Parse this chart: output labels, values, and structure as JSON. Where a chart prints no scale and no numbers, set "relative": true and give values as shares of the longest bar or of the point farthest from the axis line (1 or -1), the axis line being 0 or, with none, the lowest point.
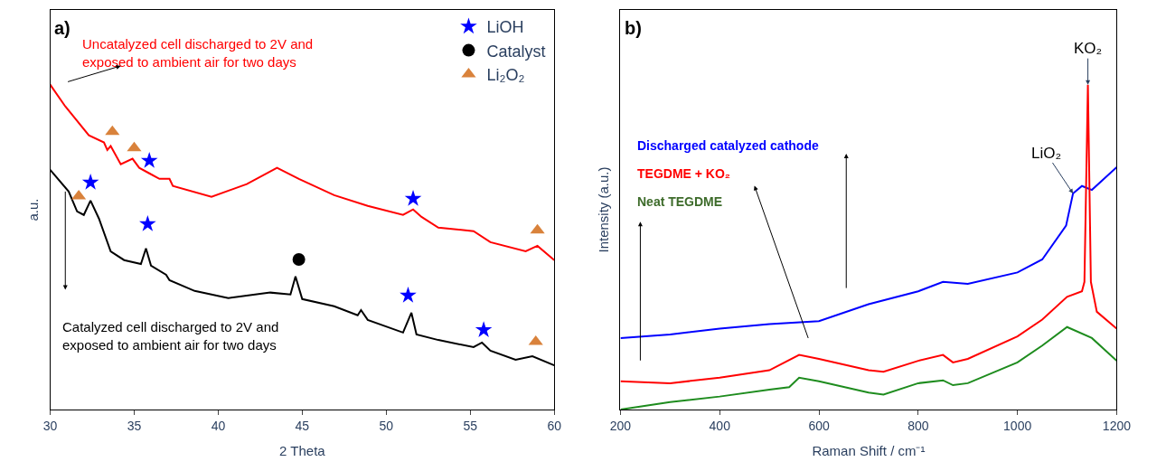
{
  "chart_data": [
    {
      "type": "line",
      "relative": true,
      "xlabel": "2 Theta",
      "ylabel": "a.u.",
      "xlim": [
        30,
        60
      ],
      "xticks": [
        30,
        35,
        40,
        45,
        50,
        55,
        60
      ],
      "tick_labels": "x",
      "legend": "top right",
      "annotations": [
        "a)"
      ],
      "series": [
        {
          "name": "Uncatalyzed cell discharged to 2V and\nexposed to ambient air for two days",
          "color": "#ff0000",
          "x": [
            30,
            30.9,
            32.3,
            33.2,
            33.4,
            33.6,
            34.2,
            34.9,
            35.3,
            35.9,
            36.5,
            37.1,
            37.3,
            39.6,
            41.7,
            43.5,
            44.8,
            46.9,
            48.9,
            51.0,
            51.6,
            52.1,
            53.1,
            55.2,
            56.2,
            58.3,
            59.0,
            60
          ],
          "values": [
            1.0,
            0.933,
            0.844,
            0.822,
            0.799,
            0.811,
            0.755,
            0.772,
            0.744,
            0.727,
            0.71,
            0.71,
            0.688,
            0.655,
            0.694,
            0.744,
            0.71,
            0.66,
            0.627,
            0.599,
            0.616,
            0.593,
            0.56,
            0.549,
            0.515,
            0.487,
            0.504,
            0.46
          ]
        },
        {
          "name": "Catalyzed cell discharged to 2V and\nexposed to ambient air for two days",
          "color": "#000000",
          "x": [
            30,
            31.1,
            31.6,
            32.0,
            32.4,
            32.9,
            33.6,
            34.4,
            35.4,
            35.7,
            36.0,
            36.9,
            37.1,
            38.6,
            40.6,
            43.1,
            44.3,
            44.6,
            45.0,
            46.9,
            48.3,
            48.5,
            48.9,
            51.0,
            51.5,
            51.8,
            53.1,
            55.2,
            55.7,
            56.2,
            57.7,
            58.7,
            60
          ],
          "values": [
            0.738,
            0.671,
            0.61,
            0.599,
            0.643,
            0.588,
            0.487,
            0.46,
            0.448,
            0.496,
            0.443,
            0.415,
            0.398,
            0.365,
            0.343,
            0.36,
            0.354,
            0.41,
            0.34,
            0.318,
            0.29,
            0.306,
            0.276,
            0.237,
            0.298,
            0.231,
            0.214,
            0.192,
            0.206,
            0.181,
            0.153,
            0.164,
            0.136
          ]
        },
        {
          "name": "LiOH",
          "type": "scatter",
          "marker": "star",
          "color": "#0000ff",
          "x": [
            32.4,
            35.9,
            35.8,
            51.6,
            51.3,
            55.8
          ],
          "values": [
            0.699,
            0.766,
            0.571,
            0.649,
            0.351,
            0.245
          ]
        },
        {
          "name": "Catalyst",
          "type": "scatter",
          "marker": "circle",
          "color": "#000000",
          "x": [
            44.8
          ],
          "values": [
            0.462
          ]
        },
        {
          "name": "Li₂O₂",
          "type": "scatter",
          "marker": "triangle",
          "color": "#d9823b",
          "x": [
            31.7,
            33.7,
            35.0,
            58.9,
            59.0
          ],
          "values": [
            0.657,
            0.855,
            0.805,
            0.209,
            0.552
          ]
        }
      ]
    },
    {
      "type": "line",
      "relative": true,
      "xlabel": "Raman Shift / cm⁻¹",
      "ylabel": "Intensity (a.u.)",
      "xlim": [
        200,
        1200
      ],
      "xticks": [
        200,
        400,
        600,
        800,
        1000,
        1200
      ],
      "tick_labels": "x",
      "annotations": [
        "b)",
        {
          "text": "LiO₂",
          "x": 1112,
          "y": 0.665
        },
        {
          "text": "KO₂",
          "x": 1142,
          "y": 1.0
        }
      ],
      "series": [
        {
          "name": "Discharged catalyzed cathode",
          "color": "#0000ff",
          "x": [
            200,
            300,
            400,
            500,
            600,
            700,
            800,
            850,
            900,
            1000,
            1050,
            1098,
            1112,
            1130,
            1150,
            1200
          ],
          "values": [
            0.22,
            0.231,
            0.249,
            0.263,
            0.272,
            0.324,
            0.364,
            0.393,
            0.387,
            0.422,
            0.462,
            0.566,
            0.665,
            0.688,
            0.676,
            0.746
          ]
        },
        {
          "name": "TEGDME + KO₂",
          "color": "#ff0000",
          "x": [
            200,
            300,
            400,
            500,
            560,
            600,
            700,
            730,
            800,
            850,
            870,
            900,
            1000,
            1050,
            1100,
            1130,
            1135,
            1142,
            1148,
            1160,
            1200
          ],
          "values": [
            0.087,
            0.081,
            0.098,
            0.121,
            0.168,
            0.156,
            0.121,
            0.116,
            0.15,
            0.168,
            0.145,
            0.156,
            0.225,
            0.277,
            0.347,
            0.364,
            0.393,
            1.0,
            0.393,
            0.301,
            0.249
          ]
        },
        {
          "name": "Neat TEGDME",
          "color": "#1e8c1e",
          "x": [
            200,
            300,
            400,
            500,
            540,
            560,
            600,
            700,
            730,
            800,
            850,
            870,
            900,
            1000,
            1050,
            1100,
            1150,
            1200
          ],
          "values": [
            0.0,
            0.023,
            0.04,
            0.061,
            0.069,
            0.098,
            0.087,
            0.052,
            0.046,
            0.081,
            0.09,
            0.075,
            0.081,
            0.145,
            0.197,
            0.254,
            0.22,
            0.15
          ]
        }
      ]
    }
  ]
}
